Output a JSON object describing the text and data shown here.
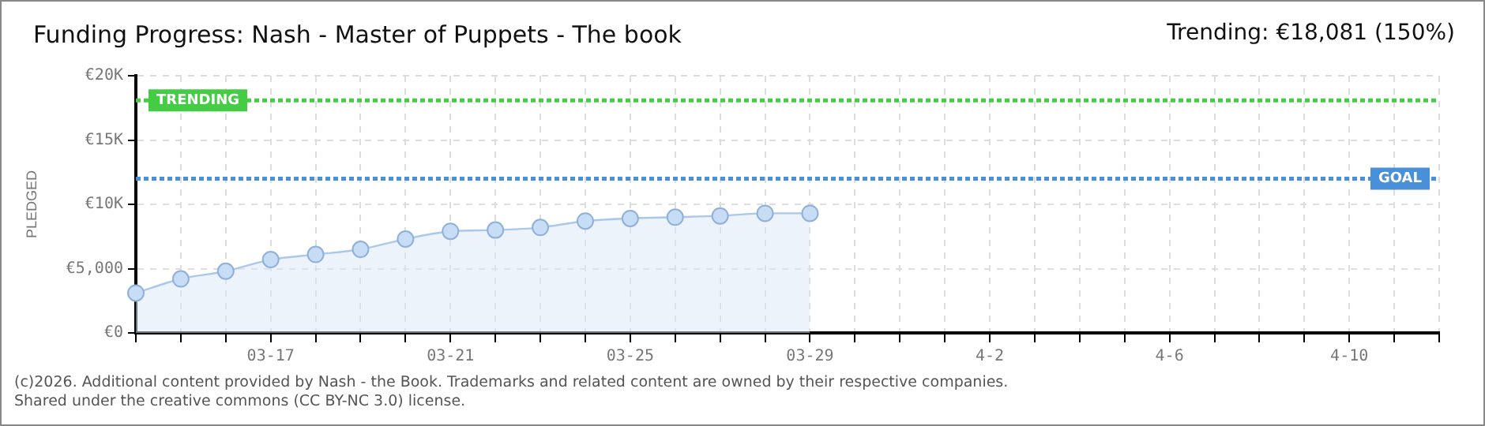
{
  "chart_data": {
    "type": "area",
    "title": "Funding Progress: Nash - Master of Puppets - The book",
    "subtitle": "Trending: €18,081 (150%)",
    "ylabel": "PLEDGED",
    "categories": [
      null,
      null,
      null,
      "03-17",
      null,
      null,
      null,
      "03-21",
      null,
      null,
      null,
      "03-25",
      null,
      null,
      null,
      "03-29",
      null,
      null,
      null,
      "4-2",
      null,
      null,
      null,
      "4-6",
      null,
      null,
      null,
      "4-10",
      null,
      null
    ],
    "series": [
      {
        "color": "#a9c8ec",
        "values": [
          3100,
          4200,
          4800,
          5700,
          6100,
          6500,
          7300,
          7900,
          8000,
          8200,
          8700,
          8900,
          9000,
          9100,
          9300,
          9300,
          null,
          null,
          null,
          null,
          null,
          null,
          null,
          null,
          null,
          null,
          null,
          null,
          null,
          null
        ]
      }
    ],
    "ylim": [
      0,
      20000
    ],
    "yticks": [
      {
        "value": 0,
        "label": "€0"
      },
      {
        "value": 5000,
        "label": "€5,000"
      },
      {
        "value": 10000,
        "label": "€10K"
      },
      {
        "value": 15000,
        "label": "€15K"
      },
      {
        "value": 20000,
        "label": "€20K"
      }
    ],
    "ref_lines": [
      {
        "axis": "y",
        "value": 18081,
        "label": "TRENDING",
        "color": "#44cc44",
        "line_style": "dotted"
      },
      {
        "axis": "y",
        "value": 12000,
        "label": "GOAL",
        "color": "#4a90d9",
        "line_style": "dotted"
      }
    ],
    "grid": true,
    "marker": "circle",
    "legend": false,
    "annotations": [
      "(c)2026. Additional content provided by Nash - the Book. Trademarks and related content are owned by their respective companies.",
      "Shared under the creative commons (CC BY-NC 3.0) license."
    ]
  }
}
